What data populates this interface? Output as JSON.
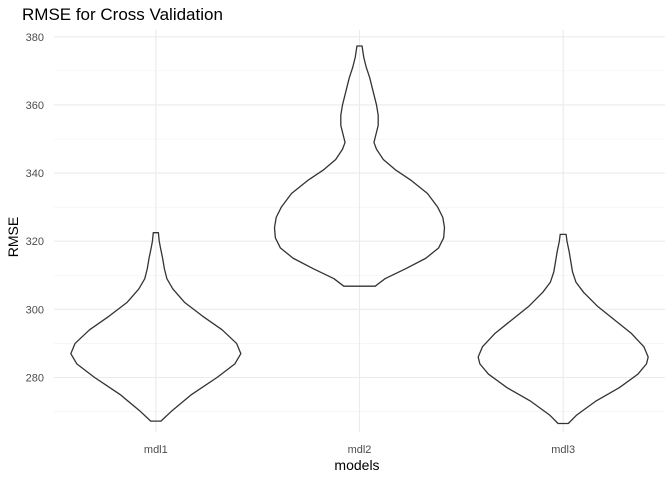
{
  "chart_data": {
    "type": "violin",
    "title": "RMSE for Cross Validation",
    "xlabel": "models",
    "ylabel": "RMSE",
    "categories": [
      "mdl1",
      "mdl2",
      "mdl3"
    ],
    "ylim": [
      264,
      382
    ],
    "yticks": [
      280,
      300,
      320,
      340,
      360,
      380
    ],
    "grid": true,
    "series": [
      {
        "category": "mdl1",
        "min": 267.2,
        "max": 322.5,
        "profile": [
          [
            267.2,
            0.06
          ],
          [
            270,
            0.18
          ],
          [
            275,
            0.42
          ],
          [
            280,
            0.72
          ],
          [
            284,
            0.93
          ],
          [
            287,
            1.0
          ],
          [
            290,
            0.95
          ],
          [
            294,
            0.78
          ],
          [
            298,
            0.55
          ],
          [
            302,
            0.34
          ],
          [
            306,
            0.2
          ],
          [
            309,
            0.13
          ],
          [
            312,
            0.1
          ],
          [
            315,
            0.08
          ],
          [
            318,
            0.055
          ],
          [
            320,
            0.04
          ],
          [
            322.5,
            0.03
          ]
        ]
      },
      {
        "category": "mdl2",
        "min": 306.8,
        "max": 377.3,
        "profile": [
          [
            306.8,
            0.185
          ],
          [
            309,
            0.3
          ],
          [
            312,
            0.55
          ],
          [
            315,
            0.78
          ],
          [
            318,
            0.93
          ],
          [
            321,
            0.99
          ],
          [
            324,
            1.0
          ],
          [
            327,
            0.98
          ],
          [
            330,
            0.92
          ],
          [
            334,
            0.8
          ],
          [
            338,
            0.6
          ],
          [
            341,
            0.42
          ],
          [
            344,
            0.28
          ],
          [
            347,
            0.2
          ],
          [
            349,
            0.17
          ],
          [
            351,
            0.19
          ],
          [
            354,
            0.22
          ],
          [
            357,
            0.22
          ],
          [
            360,
            0.2
          ],
          [
            364,
            0.16
          ],
          [
            368,
            0.12
          ],
          [
            371,
            0.08
          ],
          [
            374,
            0.05
          ],
          [
            377.3,
            0.03
          ]
        ]
      },
      {
        "category": "mdl3",
        "min": 266.5,
        "max": 322.0,
        "profile": [
          [
            266.5,
            0.06
          ],
          [
            269,
            0.16
          ],
          [
            273,
            0.38
          ],
          [
            277,
            0.66
          ],
          [
            281,
            0.88
          ],
          [
            284,
            0.98
          ],
          [
            286,
            1.0
          ],
          [
            289,
            0.95
          ],
          [
            293,
            0.8
          ],
          [
            297,
            0.6
          ],
          [
            301,
            0.4
          ],
          [
            305,
            0.24
          ],
          [
            308,
            0.15
          ],
          [
            311,
            0.11
          ],
          [
            314,
            0.09
          ],
          [
            317,
            0.07
          ],
          [
            320,
            0.045
          ],
          [
            322,
            0.035
          ]
        ]
      }
    ]
  }
}
